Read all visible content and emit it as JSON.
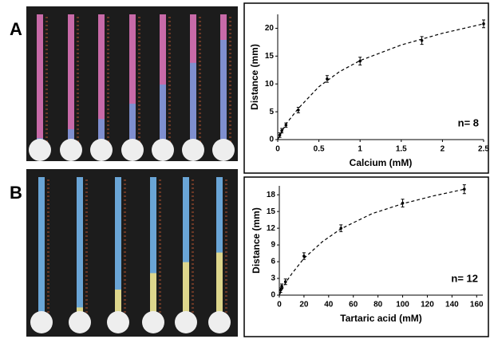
{
  "chart_data": [
    {
      "type": "scatter",
      "panel": "A",
      "xlabel": "Calcium (mM)",
      "ylabel": "Distance (mm)",
      "annotation": "n= 8",
      "xlim": [
        0,
        2.5
      ],
      "ylim": [
        0,
        22.5
      ],
      "xticks": [
        0,
        0.5,
        1,
        1.5,
        2,
        2.5
      ],
      "yticks": [
        0,
        5,
        10,
        15,
        20
      ],
      "series": [
        {
          "color": "#000000",
          "x": [
            0.025,
            0.05,
            0.1,
            0.25,
            0.6,
            1,
            1.75,
            2.5
          ],
          "values": [
            0.8,
            1.6,
            2.6,
            5.3,
            10.9,
            14.1,
            17.8,
            20.8
          ],
          "errors": [
            0.4,
            0.4,
            0.4,
            0.5,
            0.6,
            0.7,
            0.7,
            0.7
          ]
        },
        {
          "color": "#000000",
          "style": "dashed",
          "x": [
            0,
            0.1,
            0.25,
            0.5,
            0.75,
            1,
            1.5,
            2,
            2.5
          ],
          "values": [
            0,
            2.8,
            5.6,
            9.5,
            12.2,
            14.2,
            17,
            19.1,
            20.8
          ]
        }
      ]
    },
    {
      "type": "scatter",
      "panel": "B",
      "xlabel": "Tartaric acid (mM)",
      "ylabel": "Distance (mm)",
      "annotation": "n= 12",
      "xlim": [
        0,
        165
      ],
      "ylim": [
        0,
        19.6
      ],
      "xticks": [
        0,
        20,
        40,
        60,
        80,
        100,
        120,
        140,
        160
      ],
      "yticks": [
        0,
        3,
        6,
        9,
        12,
        15,
        18
      ],
      "series": [
        {
          "color": "#000000",
          "x": [
            1,
            2,
            5,
            20,
            50,
            100,
            150
          ],
          "values": [
            0.9,
            1.6,
            2.4,
            7,
            12,
            16.5,
            19
          ],
          "errors": [
            0.4,
            0.4,
            0.5,
            0.6,
            0.6,
            0.7,
            0.8
          ]
        },
        {
          "color": "#000000",
          "style": "dashed",
          "x": [
            0,
            5,
            10,
            20,
            35,
            50,
            75,
            100,
            125,
            150
          ],
          "values": [
            0,
            2.2,
            3.8,
            6.6,
            9.6,
            11.9,
            14.6,
            16.4,
            17.8,
            19
          ]
        }
      ]
    }
  ]
}
